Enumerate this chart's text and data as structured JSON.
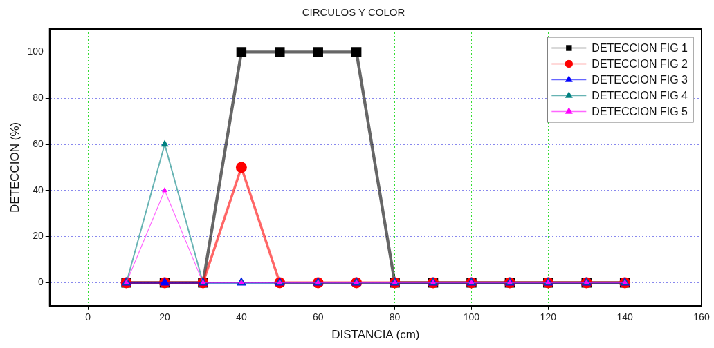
{
  "chart_data": {
    "type": "line",
    "title": "CIRCULOS Y COLOR",
    "xlabel": "DISTANCIA (cm)",
    "ylabel": "DETECCION (%)",
    "x": [
      10,
      20,
      30,
      40,
      50,
      60,
      70,
      80,
      90,
      100,
      110,
      120,
      130,
      140
    ],
    "series": [
      {
        "name": "DETECCION FIG 1",
        "color": "#000000",
        "marker": "square",
        "values": [
          0,
          0,
          0,
          100,
          100,
          100,
          100,
          0,
          0,
          0,
          0,
          0,
          0,
          0
        ]
      },
      {
        "name": "DETECCION FIG 2",
        "color": "#ff0000",
        "marker": "circle",
        "values": [
          0,
          0,
          0,
          50,
          0,
          0,
          0,
          0,
          0,
          0,
          0,
          0,
          0,
          0
        ]
      },
      {
        "name": "DETECCION FIG 3",
        "color": "#0000ff",
        "marker": "triangle",
        "values": [
          0,
          0,
          0,
          0,
          0,
          0,
          0,
          0,
          0,
          0,
          0,
          0,
          0,
          0
        ]
      },
      {
        "name": "DETECCION FIG 4",
        "color": "#008080",
        "marker": "triangle",
        "values": [
          0,
          60,
          0,
          0,
          0,
          0,
          0,
          0,
          0,
          0,
          0,
          0,
          0,
          0
        ]
      },
      {
        "name": "DETECCION FIG 5",
        "color": "#ff00ff",
        "marker": "triangle",
        "values": [
          0,
          40,
          0,
          0,
          0,
          0,
          0,
          0,
          0,
          0,
          0,
          0,
          0,
          0
        ]
      }
    ],
    "xlim": [
      -10,
      160
    ],
    "xticks": [
      0,
      20,
      40,
      60,
      80,
      100,
      120,
      140,
      160
    ],
    "ylim": [
      -10,
      110
    ],
    "yticks": [
      0,
      20,
      40,
      60,
      80,
      100
    ],
    "grid": true,
    "legend": "top right",
    "line_style": "solid"
  }
}
